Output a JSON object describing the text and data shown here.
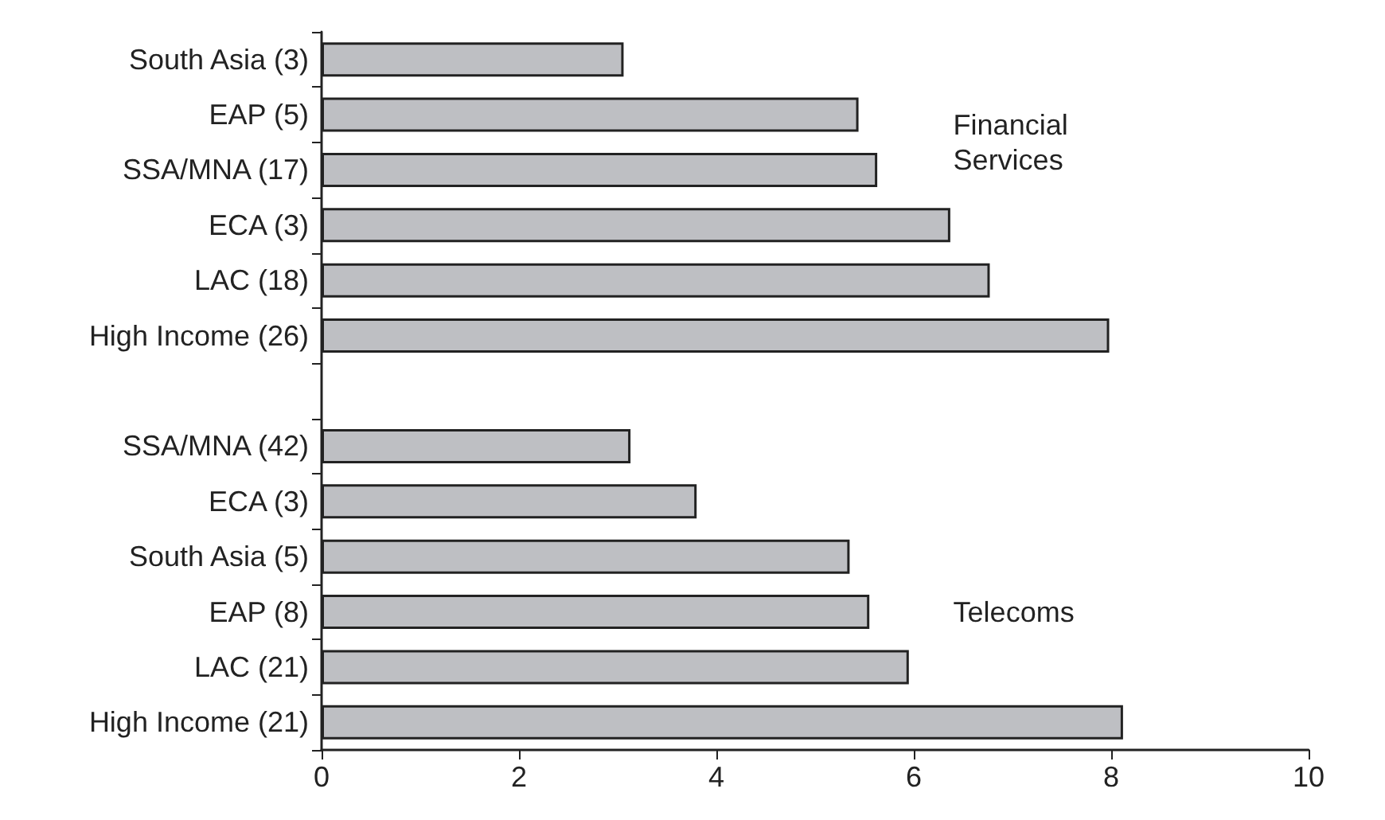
{
  "chart_data": {
    "type": "bar",
    "orientation": "horizontal",
    "categories": [
      "South Asia (3)",
      "EAP (5)",
      "SSA/MNA (17)",
      "ECA (3)",
      "LAC (18)",
      "High Income (26)",
      null,
      "SSA/MNA (42)",
      "ECA (3)",
      "South Asia (5)",
      "EAP (8)",
      "LAC (21)",
      "High Income (21)"
    ],
    "values": [
      3.06,
      5.44,
      5.63,
      6.37,
      6.77,
      7.98,
      null,
      3.13,
      3.8,
      5.35,
      5.55,
      5.95,
      8.12
    ],
    "color": "#bebfc3",
    "xlim": [
      0,
      10
    ],
    "xticks": [
      0,
      2,
      4,
      6,
      8,
      10
    ],
    "grid": false,
    "annotations": [
      "Financial\nServices",
      "Telecoms"
    ]
  }
}
